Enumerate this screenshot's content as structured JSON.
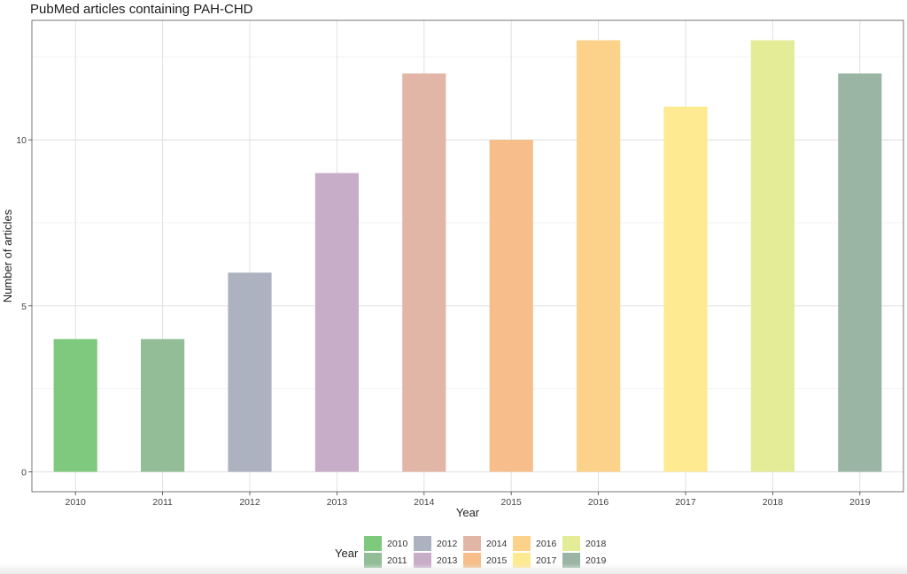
{
  "chart_data": {
    "type": "bar",
    "title": "PubMed articles containing PAH-CHD",
    "xlabel": "Year",
    "ylabel": "Number of articles",
    "categories": [
      "2010",
      "2011",
      "2012",
      "2013",
      "2014",
      "2015",
      "2016",
      "2017",
      "2018",
      "2019"
    ],
    "values": [
      4,
      4,
      6,
      9,
      12,
      10,
      13,
      11,
      13,
      12
    ],
    "ylim": [
      -0.6,
      13.6
    ],
    "yticks": [
      0,
      5,
      10
    ],
    "grid": true,
    "legend": {
      "title": "Year",
      "placement": "bottom",
      "entries": [
        "2010",
        "2011",
        "2012",
        "2013",
        "2014",
        "2015",
        "2016",
        "2017",
        "2018",
        "2019"
      ]
    },
    "colors": [
      "#7fc97f",
      "#92bd97",
      "#acb2c0",
      "#c8adc8",
      "#e2b6a6",
      "#f7bd8a",
      "#fcd18a",
      "#feea91",
      "#e4ec97",
      "#9ab5a4"
    ]
  }
}
